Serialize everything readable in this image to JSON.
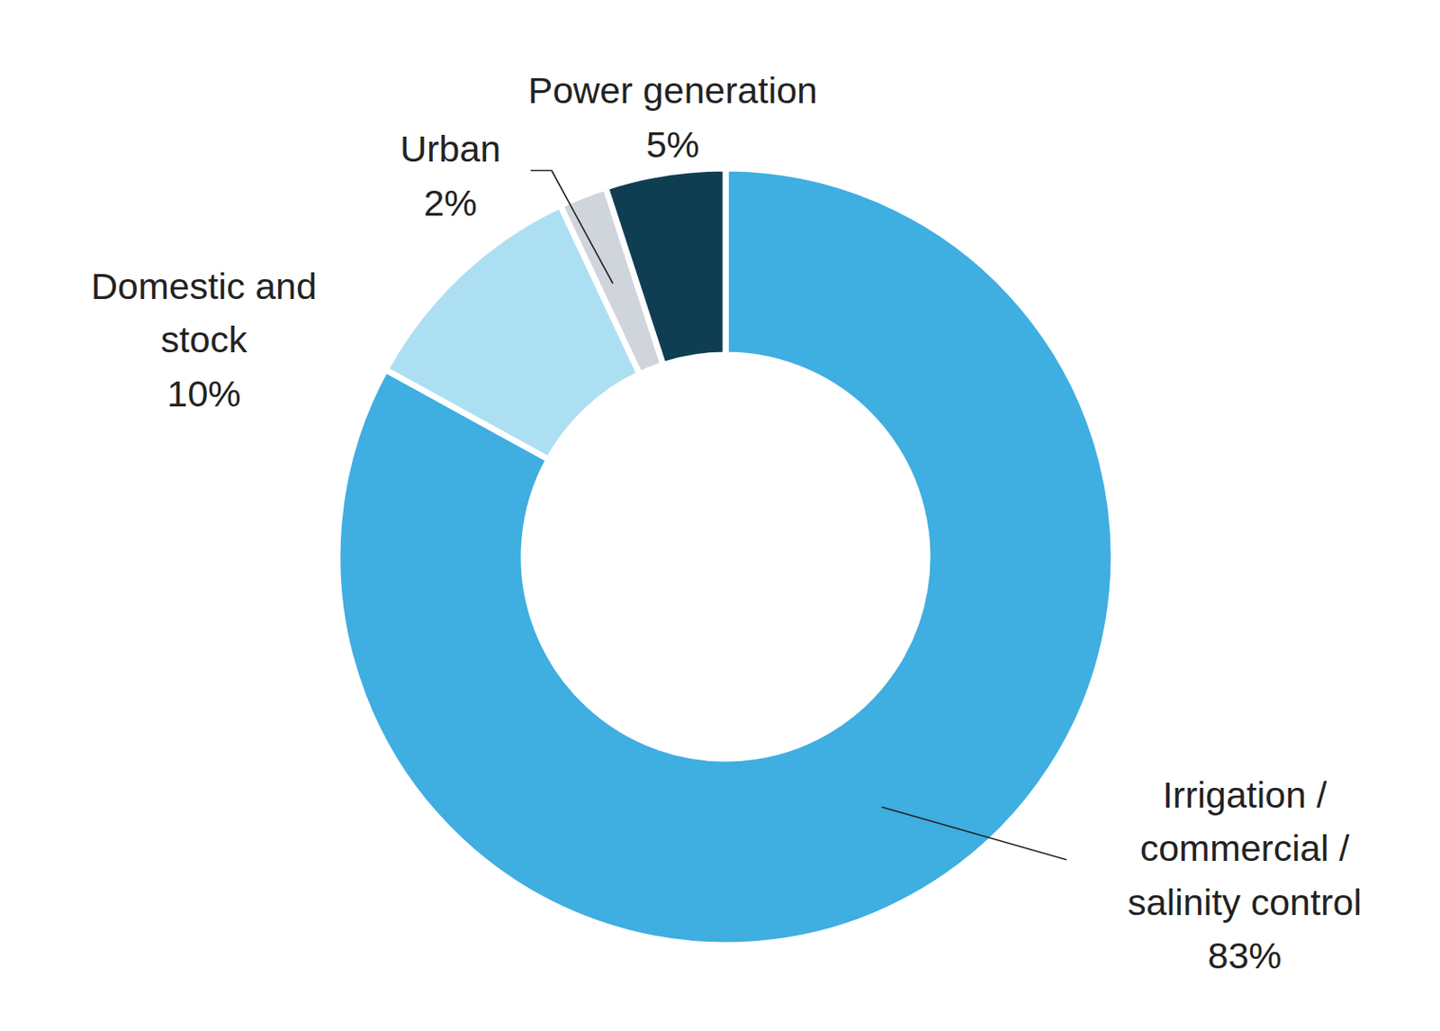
{
  "chart_data": {
    "type": "pie",
    "categories": [
      "Irrigation /\ncommercial /\nsalinity control",
      "Domestic and\nstock",
      "Urban",
      "Power generation"
    ],
    "values": [
      83,
      10,
      2,
      5
    ],
    "value_labels": [
      "83%",
      "10%",
      "2%",
      "5%"
    ],
    "colors": [
      "#3faee0",
      "#addff2",
      "#d0d5dc",
      "#0f3d52"
    ],
    "data_labels": true
  }
}
